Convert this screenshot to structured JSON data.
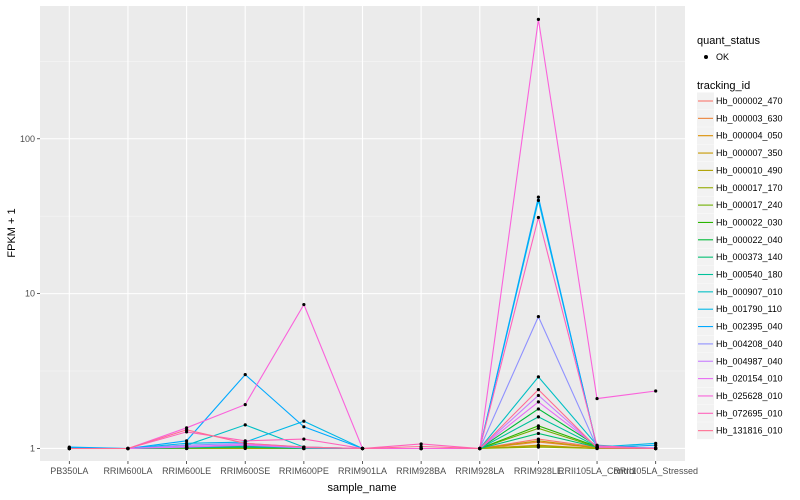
{
  "chart_data": {
    "type": "line",
    "xlabel": "sample_name",
    "ylabel": "FPKM + 1",
    "y_scale": "log10",
    "ylim": [
      0.83,
      720
    ],
    "y_ticks": [
      {
        "value": 1,
        "label": "1"
      },
      {
        "value": 10,
        "label": "10"
      },
      {
        "value": 100,
        "label": "100"
      }
    ],
    "categories": [
      "PB350LA",
      "RRIM600LA",
      "RRIM600LE",
      "RRIM600SE",
      "RRIM600PE",
      "RRIM901LA",
      "RRIM928BA",
      "RRIM928LA",
      "RRIM928LE",
      "RRII105LA_Control",
      "RRII105LA_Stressed"
    ],
    "grid": true,
    "legend_position": "right",
    "marker_legend": {
      "title": "quant_status",
      "entries": [
        "OK"
      ]
    },
    "legend_title": "tracking_id",
    "series": [
      {
        "name": "Hb_000002_470",
        "color": "#F8766D",
        "values": [
          1,
          1,
          1.02,
          1.03,
          1.01,
          1,
          1,
          1,
          1.15,
          1.02,
          1
        ]
      },
      {
        "name": "Hb_000003_630",
        "color": "#EC8239",
        "values": [
          1,
          1,
          1.01,
          1.02,
          1,
          1,
          1,
          1,
          1.1,
          1.01,
          1
        ]
      },
      {
        "name": "Hb_000004_050",
        "color": "#DB8E00",
        "values": [
          1,
          1,
          1,
          1.01,
          1,
          1,
          1,
          1,
          1.05,
          1,
          1
        ]
      },
      {
        "name": "Hb_000007_350",
        "color": "#C79800",
        "values": [
          1,
          1,
          1.01,
          1.02,
          1.01,
          1,
          1,
          1,
          1.12,
          1.01,
          1
        ]
      },
      {
        "name": "Hb_000010_490",
        "color": "#AFA100",
        "values": [
          1,
          1,
          1,
          1.01,
          1,
          1,
          1,
          1,
          1.04,
          1,
          1
        ]
      },
      {
        "name": "Hb_000017_170",
        "color": "#93AA00",
        "values": [
          1,
          1,
          1,
          1,
          1,
          1,
          1,
          1,
          1.02,
          1,
          1
        ]
      },
      {
        "name": "Hb_000017_240",
        "color": "#6FB000",
        "values": [
          1,
          1,
          1.01,
          1.02,
          1,
          1,
          1,
          1,
          1.35,
          1.02,
          1
        ]
      },
      {
        "name": "Hb_000022_030",
        "color": "#2AB500",
        "values": [
          1,
          1,
          1.01,
          1.03,
          1.01,
          1,
          1,
          1,
          1.4,
          1.03,
          1
        ]
      },
      {
        "name": "Hb_000022_040",
        "color": "#00BA38",
        "values": [
          1,
          1,
          1.02,
          1.04,
          1.01,
          1,
          1,
          1,
          1.8,
          1.04,
          1
        ]
      },
      {
        "name": "Hb_000373_140",
        "color": "#00BE71",
        "values": [
          1,
          1,
          1.01,
          1.02,
          1,
          1,
          1,
          1,
          1.25,
          1.02,
          1
        ]
      },
      {
        "name": "Hb_000540_180",
        "color": "#00C19A",
        "values": [
          1,
          1,
          1.02,
          1.03,
          1.01,
          1,
          1,
          1,
          1.6,
          1.03,
          1
        ]
      },
      {
        "name": "Hb_000907_010",
        "color": "#00BFC4",
        "values": [
          1,
          1,
          1.05,
          1.42,
          1.02,
          1,
          1,
          1,
          2.9,
          1.05,
          1
        ]
      },
      {
        "name": "Hb_001790_110",
        "color": "#00B8E7",
        "values": [
          1.01,
          1,
          1.08,
          1.1,
          1.5,
          1,
          1,
          1,
          40,
          1.02,
          1.08
        ]
      },
      {
        "name": "Hb_002395_040",
        "color": "#00A9FF",
        "values": [
          1.02,
          1,
          1.12,
          3.0,
          1.38,
          1,
          1,
          1,
          42,
          1.01,
          1.05
        ]
      },
      {
        "name": "Hb_004208_040",
        "color": "#8F91FF",
        "values": [
          1,
          1,
          1.05,
          1.08,
          1.02,
          1,
          1,
          1,
          7.1,
          1.02,
          1.01
        ]
      },
      {
        "name": "Hb_004987_040",
        "color": "#C77CFF",
        "values": [
          1,
          1,
          1.02,
          1.05,
          1.01,
          1,
          1,
          1,
          2.2,
          1.02,
          1
        ]
      },
      {
        "name": "Hb_020154_010",
        "color": "#E76BF3",
        "values": [
          1,
          1,
          1.03,
          1.06,
          1.02,
          1,
          1,
          1,
          2.0,
          1.03,
          1
        ]
      },
      {
        "name": "Hb_025628_010",
        "color": "#FA62DB",
        "values": [
          1,
          1,
          1.36,
          1.92,
          8.5,
          1,
          1,
          1,
          590,
          2.1,
          2.35
        ]
      },
      {
        "name": "Hb_072695_010",
        "color": "#FF62BC",
        "values": [
          1,
          1,
          1.28,
          1.12,
          1.15,
          1,
          1.07,
          1,
          31,
          1.04,
          1
        ]
      },
      {
        "name": "Hb_131816_010",
        "color": "#FF6C91",
        "values": [
          1,
          1,
          1.32,
          1.08,
          1.02,
          1,
          1.03,
          1,
          2.4,
          1.01,
          1
        ]
      }
    ]
  }
}
